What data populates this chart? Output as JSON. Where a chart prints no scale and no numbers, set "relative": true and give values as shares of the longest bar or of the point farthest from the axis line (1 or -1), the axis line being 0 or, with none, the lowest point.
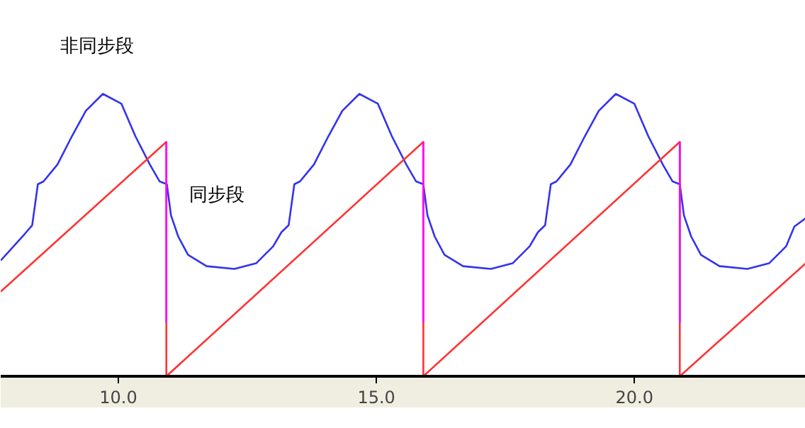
{
  "chart_data": {
    "type": "line",
    "relative": true,
    "xlim": [
      7.72,
      23.32
    ],
    "xticks": [
      {
        "value": 10,
        "label": "10.0"
      },
      {
        "value": 15,
        "label": "15.0"
      },
      {
        "value": 20,
        "label": "20.0"
      }
    ],
    "grid": false,
    "marker": "none",
    "line_style": "solid",
    "tick_labels": "x",
    "series": [
      {
        "color": "#3333ee",
        "x": [
          7.72,
          8.19,
          8.33,
          8.44,
          8.55,
          8.82,
          9.1,
          9.37,
          9.7,
          10.06,
          10.33,
          10.61,
          10.8,
          10.94,
          11.02,
          11.16,
          11.35,
          11.71,
          12.25,
          12.67,
          13.0,
          13.16,
          13.3,
          13.41,
          13.52,
          13.79,
          14.07,
          14.34,
          14.67,
          15.03,
          15.3,
          15.58,
          15.77,
          15.91,
          15.99,
          16.13,
          16.32,
          16.68,
          17.22,
          17.64,
          17.97,
          18.13,
          18.27,
          18.38,
          18.49,
          18.76,
          19.04,
          19.31,
          19.64,
          20.0,
          20.27,
          20.55,
          20.74,
          20.88,
          20.96,
          21.1,
          21.29,
          21.65,
          22.19,
          22.61,
          22.94,
          23.1,
          23.32
        ],
        "values": [
          0.41,
          0.505,
          0.535,
          0.68,
          0.69,
          0.75,
          0.85,
          0.94,
          1.0,
          0.965,
          0.85,
          0.75,
          0.69,
          0.68,
          0.57,
          0.495,
          0.43,
          0.39,
          0.38,
          0.4,
          0.46,
          0.51,
          0.535,
          0.68,
          0.69,
          0.75,
          0.85,
          0.94,
          1.0,
          0.965,
          0.85,
          0.75,
          0.69,
          0.68,
          0.57,
          0.495,
          0.43,
          0.39,
          0.38,
          0.4,
          0.46,
          0.51,
          0.535,
          0.68,
          0.69,
          0.75,
          0.85,
          0.94,
          1.0,
          0.965,
          0.85,
          0.75,
          0.69,
          0.68,
          0.57,
          0.495,
          0.43,
          0.39,
          0.38,
          0.4,
          0.46,
          0.53,
          0.56
        ]
      },
      {
        "color": "#ff3333",
        "x": [
          7.72,
          10.93,
          10.93,
          15.91,
          15.91,
          20.88,
          20.88,
          23.32
        ],
        "values": [
          0.3,
          0.83,
          0,
          0.83,
          0,
          0.83,
          0,
          0.4
        ]
      },
      {
        "color": "#ff00ff",
        "x": [
          10.93,
          10.93,
          13.0,
          15.91,
          15.91,
          18.0,
          20.88,
          20.88
        ],
        "values": [
          0.83,
          0.19,
          null,
          0.83,
          0.19,
          null,
          0.83,
          0.19
        ]
      }
    ],
    "annotations": [
      "非同步段",
      "同步段"
    ]
  }
}
